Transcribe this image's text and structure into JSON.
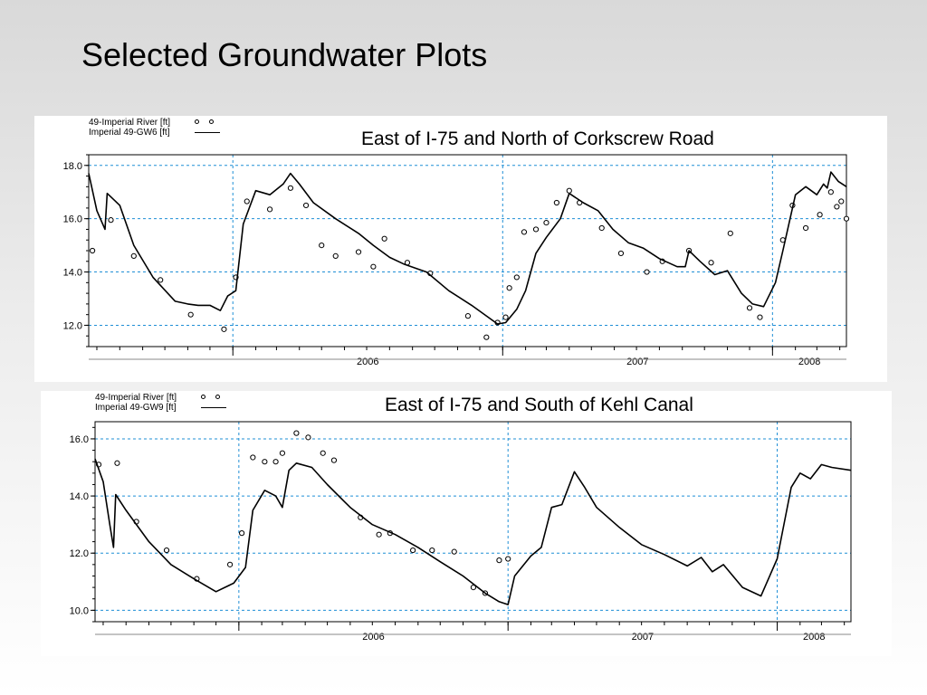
{
  "slide": {
    "title": "Selected Groundwater Plots"
  },
  "colors": {
    "grid": "#1f8fd6",
    "line": "#000000",
    "axis": "#000000",
    "background": "#ffffff"
  },
  "chart_data": [
    {
      "type": "line",
      "title": "East of I-75 and North of Corkscrew Road",
      "legend": [
        "49-Imperial River [ft]",
        "Imperial 49-GW6 [ft]"
      ],
      "legend_placement": "top-left",
      "x_range": [
        "2005-06-20",
        "2008-04-10"
      ],
      "xtick_labels": [
        "2006",
        "2007",
        "2008"
      ],
      "year_boundaries": [
        "2006-01-01",
        "2007-01-01",
        "2008-01-01"
      ],
      "ylim": [
        11.2,
        18.4
      ],
      "yticks": [
        12.0,
        14.0,
        16.0,
        18.0
      ],
      "ytick_labels": [
        "12.0",
        "14.0",
        "16.0",
        "18.0"
      ],
      "grid": true,
      "series": [
        {
          "name": "49-Imperial River [ft]",
          "style": "markers",
          "points": [
            [
              "2005-06-25",
              14.8
            ],
            [
              "2005-07-20",
              15.95
            ],
            [
              "2005-08-20",
              14.6
            ],
            [
              "2005-09-25",
              13.7
            ],
            [
              "2005-11-05",
              12.4
            ],
            [
              "2005-12-20",
              11.85
            ],
            [
              "2006-01-05",
              13.8
            ],
            [
              "2006-01-20",
              16.65
            ],
            [
              "2006-02-20",
              16.35
            ],
            [
              "2006-03-20",
              17.15
            ],
            [
              "2006-04-10",
              16.5
            ],
            [
              "2006-05-01",
              15.0
            ],
            [
              "2006-05-20",
              14.6
            ],
            [
              "2006-06-20",
              14.75
            ],
            [
              "2006-07-10",
              14.2
            ],
            [
              "2006-07-25",
              15.25
            ],
            [
              "2006-08-25",
              14.35
            ],
            [
              "2006-09-25",
              13.95
            ],
            [
              "2006-11-15",
              12.35
            ],
            [
              "2006-12-10",
              11.55
            ],
            [
              "2006-12-25",
              12.1
            ],
            [
              "2007-01-05",
              12.3
            ],
            [
              "2007-01-10",
              13.4
            ],
            [
              "2007-01-20",
              13.8
            ],
            [
              "2007-01-30",
              15.5
            ],
            [
              "2007-02-15",
              15.6
            ],
            [
              "2007-03-01",
              15.85
            ],
            [
              "2007-03-15",
              16.6
            ],
            [
              "2007-04-01",
              17.05
            ],
            [
              "2007-04-15",
              16.6
            ],
            [
              "2007-05-15",
              15.65
            ],
            [
              "2007-06-10",
              14.7
            ],
            [
              "2007-07-15",
              14.0
            ],
            [
              "2007-08-05",
              14.4
            ],
            [
              "2007-09-10",
              14.8
            ],
            [
              "2007-10-10",
              14.35
            ],
            [
              "2007-11-05",
              15.45
            ],
            [
              "2007-12-01",
              12.65
            ],
            [
              "2007-12-15",
              12.3
            ],
            [
              "2008-01-15",
              15.2
            ],
            [
              "2008-01-28",
              16.5
            ],
            [
              "2008-02-15",
              15.65
            ],
            [
              "2008-03-05",
              16.15
            ],
            [
              "2008-03-20",
              17.0
            ],
            [
              "2008-03-28",
              16.45
            ],
            [
              "2008-04-03",
              16.65
            ],
            [
              "2008-04-10",
              16.0
            ]
          ]
        },
        {
          "name": "Imperial 49-GW6 [ft]",
          "style": "line",
          "points": [
            [
              "2005-06-20",
              17.7
            ],
            [
              "2005-07-01",
              16.3
            ],
            [
              "2005-07-12",
              15.6
            ],
            [
              "2005-07-15",
              16.95
            ],
            [
              "2005-08-01",
              16.5
            ],
            [
              "2005-08-20",
              15.0
            ],
            [
              "2005-09-15",
              13.8
            ],
            [
              "2005-10-15",
              12.9
            ],
            [
              "2005-11-01",
              12.8
            ],
            [
              "2005-11-15",
              12.75
            ],
            [
              "2005-12-01",
              12.75
            ],
            [
              "2005-12-15",
              12.55
            ],
            [
              "2005-12-25",
              13.1
            ],
            [
              "2006-01-05",
              13.3
            ],
            [
              "2006-01-15",
              15.8
            ],
            [
              "2006-02-01",
              17.05
            ],
            [
              "2006-02-20",
              16.9
            ],
            [
              "2006-03-10",
              17.3
            ],
            [
              "2006-03-20",
              17.7
            ],
            [
              "2006-04-01",
              17.3
            ],
            [
              "2006-04-20",
              16.6
            ],
            [
              "2006-05-20",
              16.0
            ],
            [
              "2006-06-20",
              15.45
            ],
            [
              "2006-07-10",
              15.0
            ],
            [
              "2006-08-01",
              14.55
            ],
            [
              "2006-08-20",
              14.3
            ],
            [
              "2006-09-20",
              14.0
            ],
            [
              "2006-10-20",
              13.3
            ],
            [
              "2006-11-20",
              12.75
            ],
            [
              "2006-12-10",
              12.35
            ],
            [
              "2006-12-25",
              12.05
            ],
            [
              "2007-01-05",
              12.1
            ],
            [
              "2007-01-20",
              12.6
            ],
            [
              "2007-02-01",
              13.3
            ],
            [
              "2007-02-15",
              14.7
            ],
            [
              "2007-03-01",
              15.3
            ],
            [
              "2007-03-20",
              16.0
            ],
            [
              "2007-04-01",
              16.95
            ],
            [
              "2007-04-20",
              16.6
            ],
            [
              "2007-05-10",
              16.3
            ],
            [
              "2007-05-30",
              15.6
            ],
            [
              "2007-06-20",
              15.1
            ],
            [
              "2007-07-10",
              14.9
            ],
            [
              "2007-08-01",
              14.5
            ],
            [
              "2007-08-25",
              14.2
            ],
            [
              "2007-09-05",
              14.2
            ],
            [
              "2007-09-10",
              14.8
            ],
            [
              "2007-09-25",
              14.4
            ],
            [
              "2007-10-15",
              13.9
            ],
            [
              "2007-11-01",
              14.05
            ],
            [
              "2007-11-20",
              13.2
            ],
            [
              "2007-12-05",
              12.8
            ],
            [
              "2007-12-20",
              12.7
            ],
            [
              "2008-01-05",
              13.6
            ],
            [
              "2008-01-15",
              14.8
            ],
            [
              "2008-02-01",
              16.9
            ],
            [
              "2008-02-15",
              17.2
            ],
            [
              "2008-03-01",
              16.9
            ],
            [
              "2008-03-10",
              17.3
            ],
            [
              "2008-03-15",
              17.15
            ],
            [
              "2008-03-20",
              17.75
            ],
            [
              "2008-03-30",
              17.4
            ],
            [
              "2008-04-10",
              17.2
            ]
          ]
        }
      ]
    },
    {
      "type": "line",
      "title": "East of I-75 and South of Kehl Canal",
      "legend": [
        "49-Imperial River [ft]",
        "Imperial 49-GW9 [ft]"
      ],
      "legend_placement": "top-left",
      "x_range": [
        "2005-06-20",
        "2008-04-10"
      ],
      "xtick_labels": [
        "2006",
        "2007",
        "2008"
      ],
      "year_boundaries": [
        "2006-01-01",
        "2007-01-01",
        "2008-01-01"
      ],
      "ylim": [
        9.6,
        16.6
      ],
      "yticks": [
        10.0,
        12.0,
        14.0,
        16.0
      ],
      "ytick_labels": [
        "10.0",
        "12.0",
        "14.0",
        "16.0"
      ],
      "grid": true,
      "series": [
        {
          "name": "49-Imperial River [ft]",
          "style": "markers",
          "points": [
            [
              "2005-06-25",
              15.1
            ],
            [
              "2005-07-20",
              15.15
            ],
            [
              "2005-08-15",
              13.1
            ],
            [
              "2005-09-25",
              12.1
            ],
            [
              "2005-11-05",
              11.1
            ],
            [
              "2005-12-20",
              11.6
            ],
            [
              "2006-01-05",
              12.7
            ],
            [
              "2006-01-20",
              15.35
            ],
            [
              "2006-02-05",
              15.2
            ],
            [
              "2006-02-20",
              15.2
            ],
            [
              "2006-03-01",
              15.5
            ],
            [
              "2006-03-20",
              16.2
            ],
            [
              "2006-04-05",
              16.05
            ],
            [
              "2006-04-25",
              15.5
            ],
            [
              "2006-05-10",
              15.25
            ],
            [
              "2006-06-15",
              13.25
            ],
            [
              "2006-07-10",
              12.65
            ],
            [
              "2006-07-25",
              12.7
            ],
            [
              "2006-08-25",
              12.1
            ],
            [
              "2006-09-20",
              12.1
            ],
            [
              "2006-10-20",
              12.05
            ],
            [
              "2006-11-15",
              10.8
            ],
            [
              "2006-12-01",
              10.6
            ],
            [
              "2006-12-20",
              11.75
            ],
            [
              "2007-01-01",
              11.8
            ]
          ]
        },
        {
          "name": "Imperial 49-GW9 [ft]",
          "style": "line",
          "points": [
            [
              "2005-06-20",
              15.3
            ],
            [
              "2005-07-01",
              14.5
            ],
            [
              "2005-07-10",
              13.0
            ],
            [
              "2005-07-15",
              12.2
            ],
            [
              "2005-07-18",
              14.05
            ],
            [
              "2005-08-01",
              13.5
            ],
            [
              "2005-09-01",
              12.4
            ],
            [
              "2005-10-01",
              11.6
            ],
            [
              "2005-11-01",
              11.1
            ],
            [
              "2005-12-01",
              10.65
            ],
            [
              "2005-12-25",
              10.95
            ],
            [
              "2006-01-10",
              11.5
            ],
            [
              "2006-01-20",
              13.5
            ],
            [
              "2006-02-05",
              14.2
            ],
            [
              "2006-02-20",
              14.0
            ],
            [
              "2006-03-01",
              13.6
            ],
            [
              "2006-03-10",
              14.9
            ],
            [
              "2006-03-20",
              15.15
            ],
            [
              "2006-04-10",
              15.0
            ],
            [
              "2006-05-01",
              14.4
            ],
            [
              "2006-06-01",
              13.6
            ],
            [
              "2006-07-01",
              13.0
            ],
            [
              "2006-08-01",
              12.65
            ],
            [
              "2006-09-01",
              12.2
            ],
            [
              "2006-10-01",
              11.7
            ],
            [
              "2006-11-01",
              11.2
            ],
            [
              "2006-12-01",
              10.6
            ],
            [
              "2006-12-20",
              10.3
            ],
            [
              "2007-01-01",
              10.2
            ],
            [
              "2007-01-10",
              11.2
            ],
            [
              "2007-02-01",
              11.9
            ],
            [
              "2007-02-15",
              12.2
            ],
            [
              "2007-03-01",
              13.6
            ],
            [
              "2007-03-15",
              13.7
            ],
            [
              "2007-04-01",
              14.85
            ],
            [
              "2007-04-15",
              14.3
            ],
            [
              "2007-05-01",
              13.6
            ],
            [
              "2007-06-01",
              12.9
            ],
            [
              "2007-07-01",
              12.3
            ],
            [
              "2007-08-01",
              11.95
            ],
            [
              "2007-09-01",
              11.55
            ],
            [
              "2007-09-20",
              11.85
            ],
            [
              "2007-10-05",
              11.35
            ],
            [
              "2007-10-20",
              11.6
            ],
            [
              "2007-11-15",
              10.8
            ],
            [
              "2007-12-10",
              10.5
            ],
            [
              "2008-01-01",
              11.8
            ],
            [
              "2008-01-20",
              14.3
            ],
            [
              "2008-02-01",
              14.8
            ],
            [
              "2008-02-15",
              14.6
            ],
            [
              "2008-03-01",
              15.1
            ],
            [
              "2008-03-15",
              15.0
            ],
            [
              "2008-04-10",
              14.9
            ]
          ]
        }
      ]
    }
  ]
}
